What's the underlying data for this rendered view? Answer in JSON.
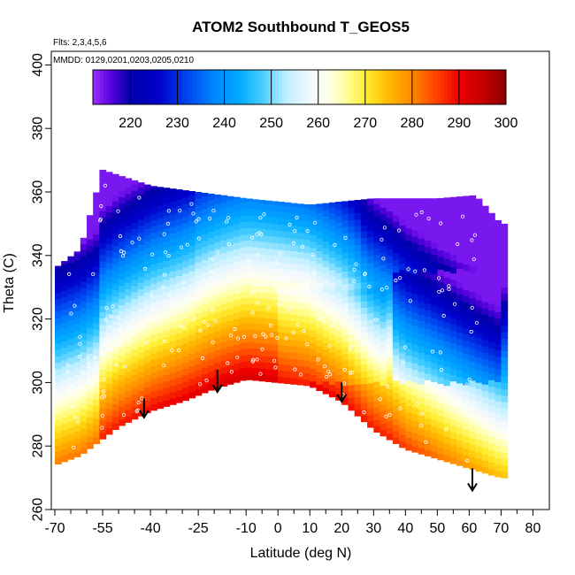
{
  "chart_data": {
    "type": "heatmap",
    "title": "ATOM2 Southbound T_GEOS5",
    "flights_note": "Flts: 2,3,4,5,6",
    "dates_note": "MMDD: 0129,0201,0203,0205,0210",
    "xlabel": "Latitude (deg N)",
    "ylabel": "Theta (C)",
    "xlim": [
      -70,
      80
    ],
    "ylim": [
      260,
      400
    ],
    "x_tick_labels": [
      "-70",
      "-55",
      "-40",
      "-25",
      "-10",
      "0",
      "10",
      "20",
      "30",
      "40",
      "50",
      "60",
      "70",
      "80"
    ],
    "x_tick_values": [
      -70,
      -55,
      -40,
      -25,
      -10,
      0,
      10,
      20,
      30,
      40,
      50,
      60,
      70,
      80
    ],
    "x_minor_ticks": [
      -65,
      -60,
      -50,
      -45,
      -35,
      -30,
      -20,
      -15,
      -5,
      5,
      15,
      25,
      35,
      45,
      55,
      65,
      75
    ],
    "y_tick_labels": [
      "260",
      "280",
      "300",
      "320",
      "340",
      "360",
      "380",
      "400"
    ],
    "y_tick_values": [
      260,
      280,
      300,
      320,
      340,
      360,
      380,
      400
    ],
    "colorbar": {
      "min": 212,
      "max": 300,
      "tick_labels": [
        "220",
        "230",
        "240",
        "250",
        "260",
        "270",
        "280",
        "290",
        "300"
      ],
      "tick_values": [
        220,
        230,
        240,
        250,
        260,
        270,
        280,
        290,
        300
      ],
      "stops": [
        {
          "v": 212,
          "c": "#9B30FF"
        },
        {
          "v": 216,
          "c": "#5500DD"
        },
        {
          "v": 220,
          "c": "#0000AA"
        },
        {
          "v": 226,
          "c": "#0000CC"
        },
        {
          "v": 232,
          "c": "#0044EE"
        },
        {
          "v": 238,
          "c": "#0088FF"
        },
        {
          "v": 243,
          "c": "#00AAFF"
        },
        {
          "v": 248,
          "c": "#44CCFF"
        },
        {
          "v": 253,
          "c": "#BBEEFF"
        },
        {
          "v": 258,
          "c": "#F0F8FF"
        },
        {
          "v": 262,
          "c": "#FFFFEE"
        },
        {
          "v": 266,
          "c": "#FFFF99"
        },
        {
          "v": 270,
          "c": "#FFEE33"
        },
        {
          "v": 275,
          "c": "#FFBB00"
        },
        {
          "v": 280,
          "c": "#FF8800"
        },
        {
          "v": 285,
          "c": "#FF4400"
        },
        {
          "v": 290,
          "c": "#EE0000"
        },
        {
          "v": 296,
          "c": "#BB0000"
        },
        {
          "v": 300,
          "c": "#880000"
        }
      ]
    },
    "data_domain": {
      "lat_top_theta": [
        [
          -70,
          336
        ],
        [
          -62,
          342
        ],
        [
          -55,
          367
        ],
        [
          -40,
          362
        ],
        [
          -25,
          360
        ],
        [
          -10,
          358
        ],
        [
          10,
          356
        ],
        [
          30,
          358
        ],
        [
          50,
          358
        ],
        [
          62,
          359
        ],
        [
          70,
          350
        ]
      ],
      "lat_bottom_theta": [
        [
          -70,
          274
        ],
        [
          -62,
          277
        ],
        [
          -50,
          286
        ],
        [
          -40,
          291
        ],
        [
          -30,
          294
        ],
        [
          -20,
          298
        ],
        [
          -10,
          301
        ],
        [
          0,
          300
        ],
        [
          10,
          299
        ],
        [
          20,
          294
        ],
        [
          30,
          285
        ],
        [
          40,
          279
        ],
        [
          50,
          276
        ],
        [
          60,
          273
        ],
        [
          70,
          270
        ]
      ]
    },
    "arrows": [
      {
        "lat": -42,
        "theta_top": 295,
        "theta_tip": 289
      },
      {
        "lat": -19,
        "theta_top": 304,
        "theta_tip": 297
      },
      {
        "lat": 20,
        "theta_top": 300,
        "theta_tip": 294
      },
      {
        "lat": 61,
        "theta_top": 273,
        "theta_tip": 266
      }
    ]
  }
}
